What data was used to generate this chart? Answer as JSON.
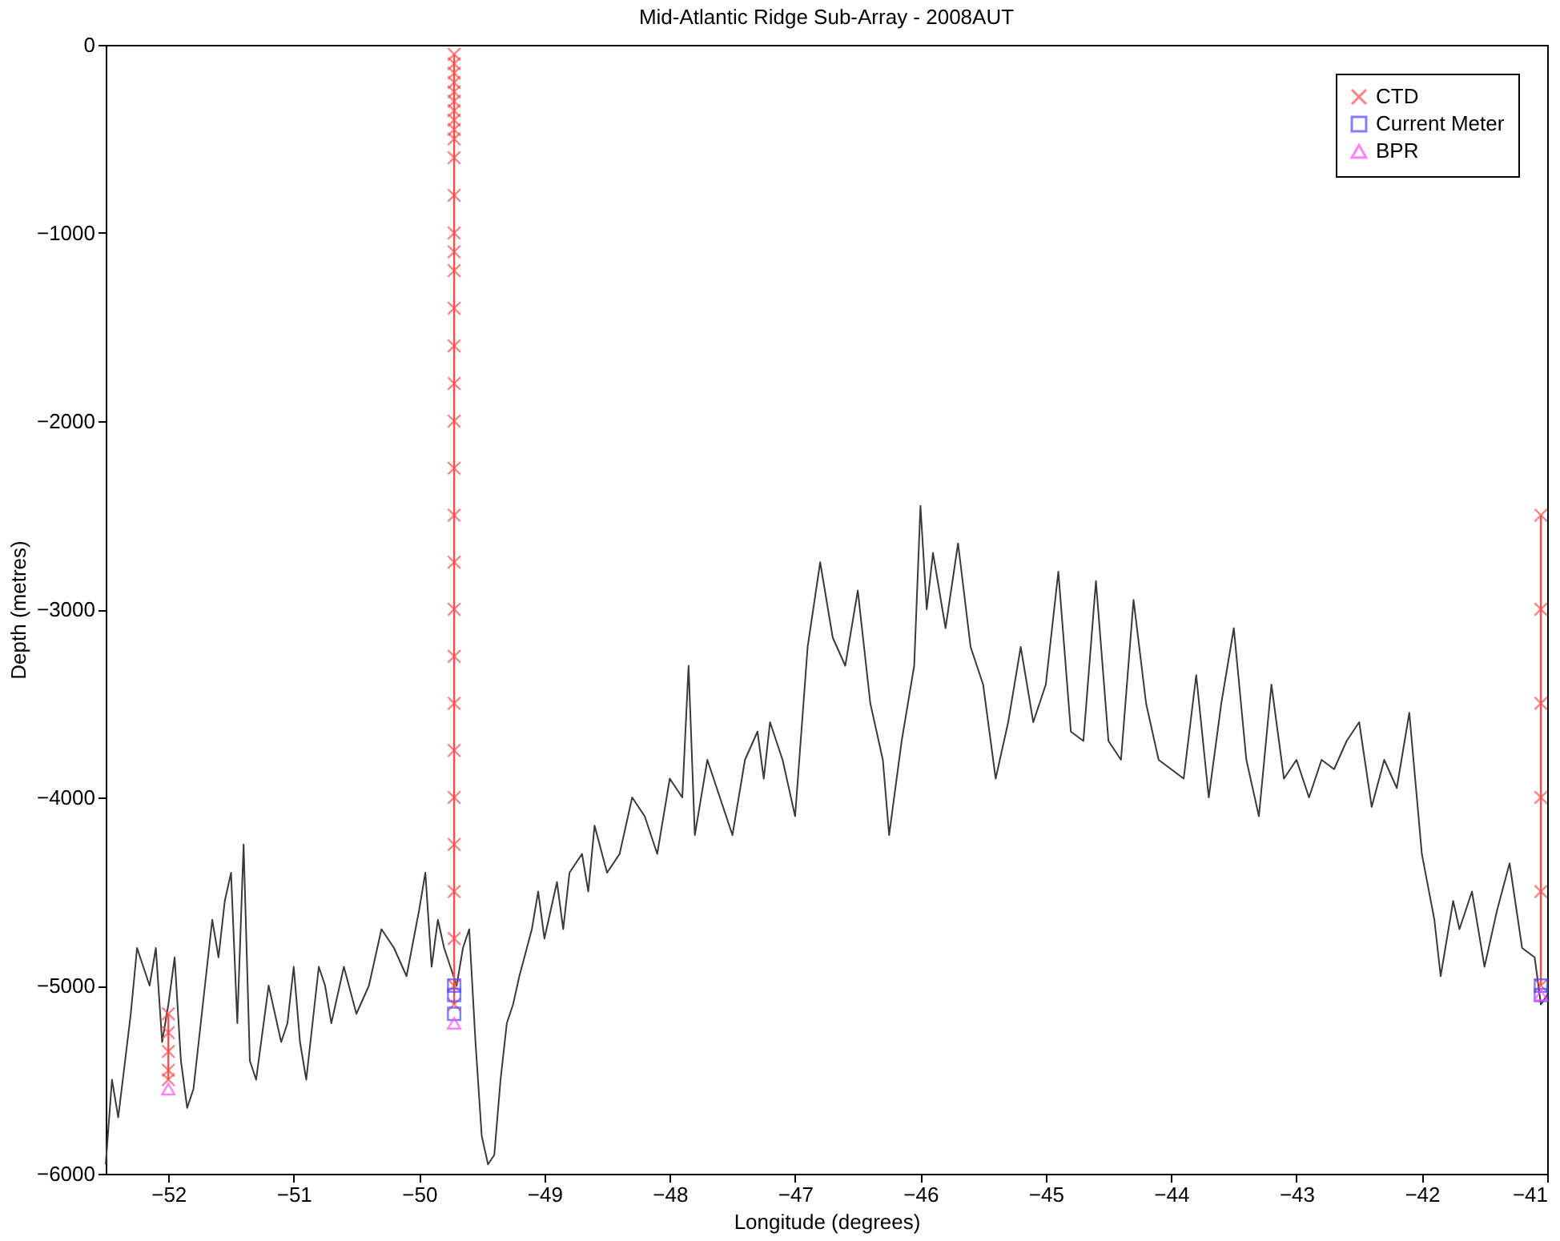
{
  "chart_data": {
    "type": "line",
    "title": "Mid-Atlantic Ridge Sub-Array - 2008AUT",
    "xlabel": "Longitude (degrees)",
    "ylabel": "Depth (metres)",
    "xlim": [
      -52.5,
      -41
    ],
    "xticks": [
      -52,
      -51,
      -50,
      -49,
      -48,
      -47,
      -46,
      -45,
      -44,
      -43,
      -42,
      -41
    ],
    "ylim": [
      -6000,
      0
    ],
    "yticks": [
      -6000,
      -5000,
      -4000,
      -3000,
      -2000,
      -1000,
      0
    ],
    "grid": false,
    "legend": "top right",
    "line_style": "solid",
    "series": [
      {
        "marker": "none",
        "color": "#3a3a3a",
        "x": [
          -52.5,
          -52.45,
          -52.4,
          -52.3,
          -52.25,
          -52.2,
          -52.15,
          -52.1,
          -52.05,
          -52.0,
          -51.95,
          -51.9,
          -51.85,
          -51.8,
          -51.7,
          -51.65,
          -51.6,
          -51.55,
          -51.5,
          -51.45,
          -51.4,
          -51.35,
          -51.3,
          -51.2,
          -51.1,
          -51.05,
          -51.0,
          -50.95,
          -50.9,
          -50.8,
          -50.75,
          -50.7,
          -50.6,
          -50.5,
          -50.4,
          -50.3,
          -50.2,
          -50.1,
          -50.0,
          -49.95,
          -49.9,
          -49.85,
          -49.8,
          -49.75,
          -49.7,
          -49.65,
          -49.6,
          -49.55,
          -49.5,
          -49.45,
          -49.4,
          -49.35,
          -49.3,
          -49.25,
          -49.2,
          -49.1,
          -49.05,
          -49.0,
          -48.9,
          -48.85,
          -48.8,
          -48.7,
          -48.65,
          -48.6,
          -48.5,
          -48.4,
          -48.3,
          -48.2,
          -48.1,
          -48.0,
          -47.9,
          -47.85,
          -47.8,
          -47.7,
          -47.6,
          -47.5,
          -47.4,
          -47.3,
          -47.25,
          -47.2,
          -47.1,
          -47.0,
          -46.9,
          -46.8,
          -46.7,
          -46.6,
          -46.5,
          -46.4,
          -46.3,
          -46.25,
          -46.15,
          -46.05,
          -46.0,
          -45.95,
          -45.9,
          -45.8,
          -45.7,
          -45.6,
          -45.5,
          -45.4,
          -45.3,
          -45.2,
          -45.1,
          -45.0,
          -44.9,
          -44.8,
          -44.7,
          -44.6,
          -44.5,
          -44.4,
          -44.3,
          -44.2,
          -44.1,
          -44.0,
          -43.9,
          -43.8,
          -43.7,
          -43.6,
          -43.5,
          -43.4,
          -43.3,
          -43.2,
          -43.1,
          -43.0,
          -42.9,
          -42.8,
          -42.7,
          -42.6,
          -42.5,
          -42.4,
          -42.3,
          -42.2,
          -42.1,
          -42.0,
          -41.9,
          -41.85,
          -41.75,
          -41.7,
          -41.6,
          -41.5,
          -41.4,
          -41.3,
          -41.2,
          -41.1,
          -41.05,
          -41.0
        ],
        "values": [
          -5950,
          -5500,
          -5700,
          -5150,
          -4800,
          -4900,
          -5000,
          -4800,
          -5300,
          -5100,
          -4850,
          -5400,
          -5650,
          -5550,
          -4950,
          -4650,
          -4850,
          -4550,
          -4400,
          -5200,
          -4250,
          -5400,
          -5500,
          -5000,
          -5300,
          -5200,
          -4900,
          -5300,
          -5500,
          -4900,
          -5000,
          -5200,
          -4900,
          -5150,
          -5000,
          -4700,
          -4800,
          -4950,
          -4600,
          -4400,
          -4900,
          -4650,
          -4800,
          -4900,
          -5000,
          -4800,
          -4700,
          -5300,
          -5800,
          -5950,
          -5900,
          -5500,
          -5200,
          -5100,
          -4950,
          -4700,
          -4500,
          -4750,
          -4450,
          -4700,
          -4400,
          -4300,
          -4500,
          -4150,
          -4400,
          -4300,
          -4000,
          -4100,
          -4300,
          -3900,
          -4000,
          -3300,
          -4200,
          -3800,
          -4000,
          -4200,
          -3800,
          -3650,
          -3900,
          -3600,
          -3800,
          -4100,
          -3200,
          -2750,
          -3150,
          -3300,
          -2900,
          -3500,
          -3800,
          -4200,
          -3700,
          -3300,
          -2450,
          -3000,
          -2700,
          -3100,
          -2650,
          -3200,
          -3400,
          -3900,
          -3600,
          -3200,
          -3600,
          -3400,
          -2800,
          -3650,
          -3700,
          -2850,
          -3700,
          -3800,
          -2950,
          -3500,
          -3800,
          -3850,
          -3900,
          -3350,
          -4000,
          -3500,
          -3100,
          -3800,
          -4100,
          -3400,
          -3900,
          -3800,
          -4000,
          -3800,
          -3850,
          -3700,
          -3600,
          -4050,
          -3800,
          -3950,
          -3550,
          -4300,
          -4650,
          -4950,
          -4550,
          -4700,
          -4500,
          -4900,
          -4600,
          -4350,
          -4800,
          -4850,
          -5100,
          -5050
        ]
      },
      {
        "name": "CTD",
        "type": "line",
        "marker": "cross",
        "color": "#ff4a4a",
        "x": [
          -52.0,
          -52.0,
          -52.0,
          -52.0,
          -52.0,
          null,
          -49.72,
          -49.72,
          -49.72,
          -49.72,
          -49.72,
          -49.72,
          -49.72,
          -49.72,
          -49.72,
          -49.72,
          -49.72,
          -49.72,
          -49.72,
          -49.72,
          -49.72,
          -49.72,
          -49.72,
          -49.72,
          -49.72,
          -49.72,
          -49.72,
          -49.72,
          -49.72,
          -49.72,
          -49.72,
          -49.72,
          -49.72,
          -49.72,
          -49.72,
          -49.72,
          -49.72,
          -49.72,
          null,
          -41.05,
          -41.05,
          -41.05,
          -41.05,
          -41.05,
          -41.05
        ],
        "values": [
          -5150,
          -5250,
          -5350,
          -5450,
          -5500,
          null,
          -50,
          -100,
          -150,
          -200,
          -250,
          -300,
          -350,
          -400,
          -450,
          -500,
          -600,
          -800,
          -1000,
          -1100,
          -1200,
          -1400,
          -1600,
          -1800,
          -2000,
          -2250,
          -2500,
          -2750,
          -3000,
          -3250,
          -3500,
          -3750,
          -4000,
          -4250,
          -4500,
          -4750,
          -5000,
          -5100,
          null,
          -2500,
          -3000,
          -3500,
          -4000,
          -4500,
          -5000
        ]
      },
      {
        "name": "Current Meter",
        "type": "scatter",
        "marker": "square",
        "color": "#4a4aff",
        "x": [
          -49.72,
          -49.72,
          -49.72,
          -41.05,
          -41.05
        ],
        "values": [
          -5000,
          -5050,
          -5150,
          -5000,
          -5050
        ]
      },
      {
        "name": "BPR",
        "type": "scatter",
        "marker": "triangle",
        "color": "#ff4aff",
        "x": [
          -52.0,
          -49.72,
          -41.05
        ],
        "values": [
          -5550,
          -5200,
          -5050
        ]
      }
    ]
  }
}
